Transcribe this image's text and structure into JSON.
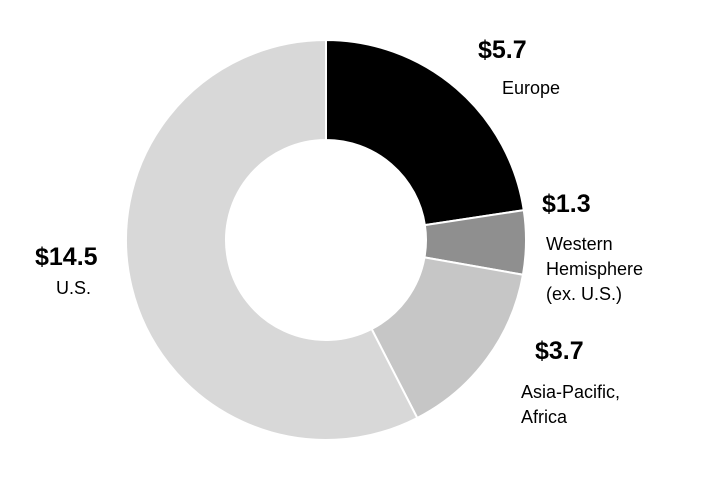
{
  "chart_data": {
    "type": "donut",
    "categories": [
      "Europe",
      "Western Hemisphere (ex. U.S.)",
      "Asia-Pacific, Africa",
      "U.S."
    ],
    "values": [
      5.7,
      1.3,
      3.7,
      14.5
    ],
    "value_labels": [
      "$5.7",
      "$1.3",
      "$3.7",
      "$14.5"
    ],
    "colors": [
      "#000000",
      "#8f8f8f",
      "#c6c6c6",
      "#d8d8d8"
    ]
  }
}
